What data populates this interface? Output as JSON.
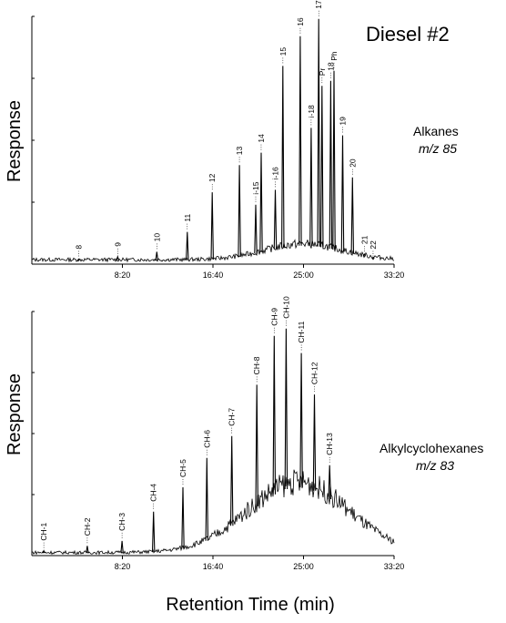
{
  "figure": {
    "title": "Diesel #2",
    "xlabel": "Retention Time (min)"
  },
  "chart_data": [
    {
      "type": "line",
      "panel": "top",
      "ylabel": "Response",
      "annotation_name": "Alkanes",
      "annotation_mz": "m/z 85",
      "x_ticks": [
        "8:20",
        "16:40",
        "25:00",
        "33:20"
      ],
      "xlim_minutes": [
        0,
        33.33
      ],
      "peaks": [
        {
          "label": "8",
          "t": 4.3,
          "h": 0.02
        },
        {
          "label": "9",
          "t": 7.9,
          "h": 0.03
        },
        {
          "label": "10",
          "t": 11.5,
          "h": 0.05
        },
        {
          "label": "11",
          "t": 14.3,
          "h": 0.13
        },
        {
          "label": "12",
          "t": 16.6,
          "h": 0.29
        },
        {
          "label": "13",
          "t": 19.1,
          "h": 0.4
        },
        {
          "label": "i-15",
          "t": 20.6,
          "h": 0.24
        },
        {
          "label": "14",
          "t": 21.1,
          "h": 0.45
        },
        {
          "label": "i-16",
          "t": 22.4,
          "h": 0.3
        },
        {
          "label": "15",
          "t": 23.1,
          "h": 0.8
        },
        {
          "label": "16",
          "t": 24.7,
          "h": 0.92
        },
        {
          "label": "i-18",
          "t": 25.7,
          "h": 0.55
        },
        {
          "label": "17",
          "t": 26.4,
          "h": 0.99
        },
        {
          "label": "Pr",
          "t": 26.7,
          "h": 0.72
        },
        {
          "label": "18",
          "t": 27.5,
          "h": 0.74
        },
        {
          "label": "Ph",
          "t": 27.8,
          "h": 0.78
        },
        {
          "label": "19",
          "t": 28.6,
          "h": 0.52
        },
        {
          "label": "20",
          "t": 29.5,
          "h": 0.35
        },
        {
          "label": "21",
          "t": 30.6,
          "h": 0.04
        },
        {
          "label": "22",
          "t": 31.4,
          "h": 0.02
        }
      ]
    },
    {
      "type": "line",
      "panel": "bottom",
      "ylabel": "Response",
      "annotation_name": "Alkylcyclohexanes",
      "annotation_mz": "m/z 83",
      "x_ticks": [
        "8:20",
        "16:40",
        "25:00",
        "33:20"
      ],
      "xlim_minutes": [
        0,
        33.33
      ],
      "peaks": [
        {
          "label": "CH-1",
          "t": 1.1,
          "h": 0.02
        },
        {
          "label": "CH-2",
          "t": 5.1,
          "h": 0.04
        },
        {
          "label": "CH-3",
          "t": 8.3,
          "h": 0.06
        },
        {
          "label": "CH-4",
          "t": 11.2,
          "h": 0.18
        },
        {
          "label": "CH-5",
          "t": 13.9,
          "h": 0.28
        },
        {
          "label": "CH-6",
          "t": 16.1,
          "h": 0.4
        },
        {
          "label": "CH-7",
          "t": 18.4,
          "h": 0.49
        },
        {
          "label": "CH-8",
          "t": 20.7,
          "h": 0.7
        },
        {
          "label": "CH-9",
          "t": 22.3,
          "h": 0.9
        },
        {
          "label": "CH-10",
          "t": 23.4,
          "h": 0.93
        },
        {
          "label": "CH-11",
          "t": 24.8,
          "h": 0.83
        },
        {
          "label": "CH-12",
          "t": 26.0,
          "h": 0.66
        },
        {
          "label": "CH-13",
          "t": 27.4,
          "h": 0.37
        }
      ]
    }
  ]
}
